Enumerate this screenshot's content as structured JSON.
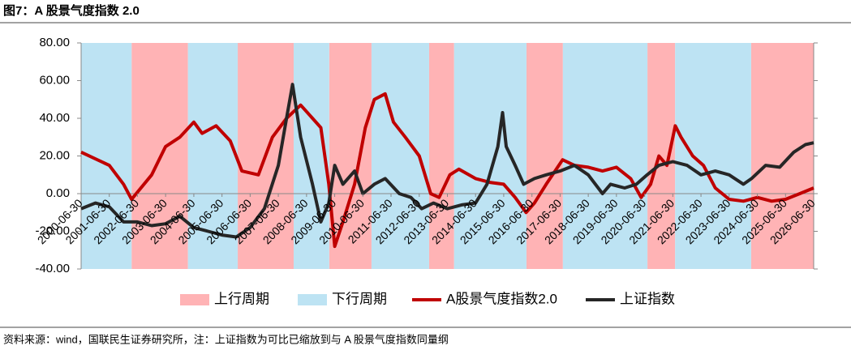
{
  "title": "图7：A 股景气度指数 2.0",
  "source": "资料来源：wind，国联民生证券研究所，注：上证指数为可比已缩放到与 A 股景气度指数同量纲",
  "chart_data": {
    "type": "line",
    "xlim": [
      "2000-06-30",
      "2026-06-30"
    ],
    "xticks": [
      "2000-06-30",
      "2001-06-30",
      "2002-06-30",
      "2003-06-30",
      "2004-06-30",
      "2005-06-30",
      "2006-06-30",
      "2007-06-30",
      "2008-06-30",
      "2009-06-30",
      "2010-06-30",
      "2011-06-30",
      "2012-06-30",
      "2013-06-30",
      "2014-06-30",
      "2015-06-30",
      "2016-06-30",
      "2017-06-30",
      "2018-06-30",
      "2019-06-30",
      "2020-06-30",
      "2021-06-30",
      "2022-06-30",
      "2023-06-30",
      "2024-06-30",
      "2025-06-30",
      "2026-06-30"
    ],
    "ylim": [
      -40,
      80
    ],
    "yticks": [
      {
        "value": -40,
        "label": "-40.00"
      },
      {
        "value": -20,
        "label": "-20.00"
      },
      {
        "value": 0,
        "label": "0.00"
      },
      {
        "value": 20,
        "label": "20.00"
      },
      {
        "value": 40,
        "label": "40.00"
      },
      {
        "value": 60,
        "label": "60.00"
      },
      {
        "value": 80,
        "label": "80.00"
      }
    ],
    "shading": [
      {
        "name": "上行周期",
        "color": "#ffb3b5",
        "ranges": [
          [
            "2002-04-15",
            "2004-04-15"
          ],
          [
            "2006-01-20",
            "2008-01-15"
          ],
          [
            "2009-04-20",
            "2010-10-20"
          ],
          [
            "2012-11-05",
            "2013-09-25"
          ],
          [
            "2016-04-20",
            "2017-08-05"
          ],
          [
            "2020-08-05",
            "2021-07-30"
          ],
          [
            "2024-04-10",
            "2026-06-30"
          ]
        ]
      },
      {
        "name": "下行周期",
        "color": "#bde3f3",
        "ranges": [
          [
            "2000-06-30",
            "2002-04-15"
          ],
          [
            "2004-04-15",
            "2006-01-20"
          ],
          [
            "2008-01-15",
            "2009-04-20"
          ],
          [
            "2010-10-20",
            "2012-11-05"
          ],
          [
            "2013-09-25",
            "2016-04-20"
          ],
          [
            "2017-08-05",
            "2020-08-05"
          ],
          [
            "2021-07-30",
            "2024-04-10"
          ]
        ]
      }
    ],
    "series": [
      {
        "name": "A股景气度指数2.0",
        "color": "#c00000",
        "x": [
          "2000-06-30",
          "2001-06-30",
          "2002-01-01",
          "2002-04-15",
          "2003-01-01",
          "2003-06-30",
          "2004-01-01",
          "2004-06-30",
          "2004-10-15",
          "2005-04-15",
          "2005-10-15",
          "2006-03-15",
          "2006-10-15",
          "2007-04-15",
          "2007-10-15",
          "2008-04-15",
          "2008-09-15",
          "2009-01-01",
          "2009-04-15",
          "2009-06-30",
          "2009-10-15",
          "2010-03-15",
          "2010-08-01",
          "2010-11-25",
          "2011-04-15",
          "2011-08-01",
          "2012-01-01",
          "2012-06-30",
          "2012-11-25",
          "2013-03-15",
          "2013-08-01",
          "2013-11-25",
          "2014-06-30",
          "2015-01-01",
          "2015-06-30",
          "2015-11-25",
          "2016-04-15",
          "2016-08-01",
          "2017-01-01",
          "2017-08-01",
          "2018-01-01",
          "2018-06-30",
          "2019-01-01",
          "2019-06-30",
          "2020-01-01",
          "2020-05-15",
          "2020-09-15",
          "2021-01-01",
          "2021-04-15",
          "2021-08-01",
          "2021-10-15",
          "2022-03-15",
          "2022-08-01",
          "2023-01-01",
          "2023-06-30",
          "2024-01-01",
          "2024-06-30",
          "2025-01-01",
          "2025-06-30",
          "2026-01-01",
          "2026-06-30"
        ],
        "values": [
          22,
          15,
          5,
          -3,
          10,
          25,
          30,
          38,
          32,
          36,
          28,
          12,
          10,
          30,
          40,
          47,
          40,
          35,
          5,
          -28,
          -15,
          5,
          35,
          50,
          53,
          38,
          30,
          20,
          0,
          -2,
          10,
          13,
          8,
          6,
          5,
          -2,
          -10,
          -5,
          5,
          18,
          15,
          14,
          12,
          14,
          8,
          -2,
          5,
          20,
          15,
          36,
          30,
          20,
          15,
          3,
          -3,
          -4,
          -2,
          -4,
          -3,
          0,
          3
        ]
      },
      {
        "name": "上证指数",
        "color": "#262626",
        "x": [
          "2000-06-30",
          "2001-01-01",
          "2001-06-30",
          "2002-01-01",
          "2002-06-30",
          "2003-01-01",
          "2003-06-30",
          "2004-01-01",
          "2004-06-30",
          "2005-01-01",
          "2005-06-30",
          "2006-01-01",
          "2006-06-30",
          "2007-01-01",
          "2007-06-30",
          "2007-10-15",
          "2008-01-01",
          "2008-04-15",
          "2008-09-15",
          "2009-01-01",
          "2009-04-15",
          "2009-06-30",
          "2009-10-15",
          "2010-03-15",
          "2010-06-30",
          "2010-11-25",
          "2011-04-15",
          "2011-10-15",
          "2012-03-15",
          "2012-08-01",
          "2013-01-01",
          "2013-06-30",
          "2014-01-01",
          "2014-06-30",
          "2014-11-25",
          "2015-04-15",
          "2015-06-15",
          "2015-08-01",
          "2015-11-25",
          "2016-03-15",
          "2016-08-01",
          "2017-01-01",
          "2017-06-30",
          "2018-01-01",
          "2018-06-30",
          "2019-01-01",
          "2019-04-15",
          "2019-10-15",
          "2020-03-15",
          "2020-08-01",
          "2021-01-01",
          "2021-06-30",
          "2022-01-01",
          "2022-06-30",
          "2023-01-01",
          "2023-06-30",
          "2024-01-01",
          "2024-04-15",
          "2024-10-15",
          "2025-04-15",
          "2025-10-15",
          "2026-03-15",
          "2026-06-30"
        ],
        "values": [
          -8,
          -5,
          -7,
          -15,
          -15,
          -17,
          -16,
          -12,
          -18,
          -20,
          -22,
          -23,
          -18,
          -8,
          15,
          40,
          58,
          30,
          5,
          -15,
          -5,
          15,
          5,
          12,
          0,
          5,
          8,
          0,
          -2,
          -8,
          -5,
          -8,
          -6,
          -5,
          5,
          25,
          43,
          25,
          15,
          5,
          8,
          10,
          12,
          15,
          10,
          0,
          5,
          3,
          5,
          10,
          15,
          17,
          15,
          10,
          12,
          10,
          5,
          8,
          15,
          14,
          22,
          26,
          27
        ]
      }
    ]
  }
}
